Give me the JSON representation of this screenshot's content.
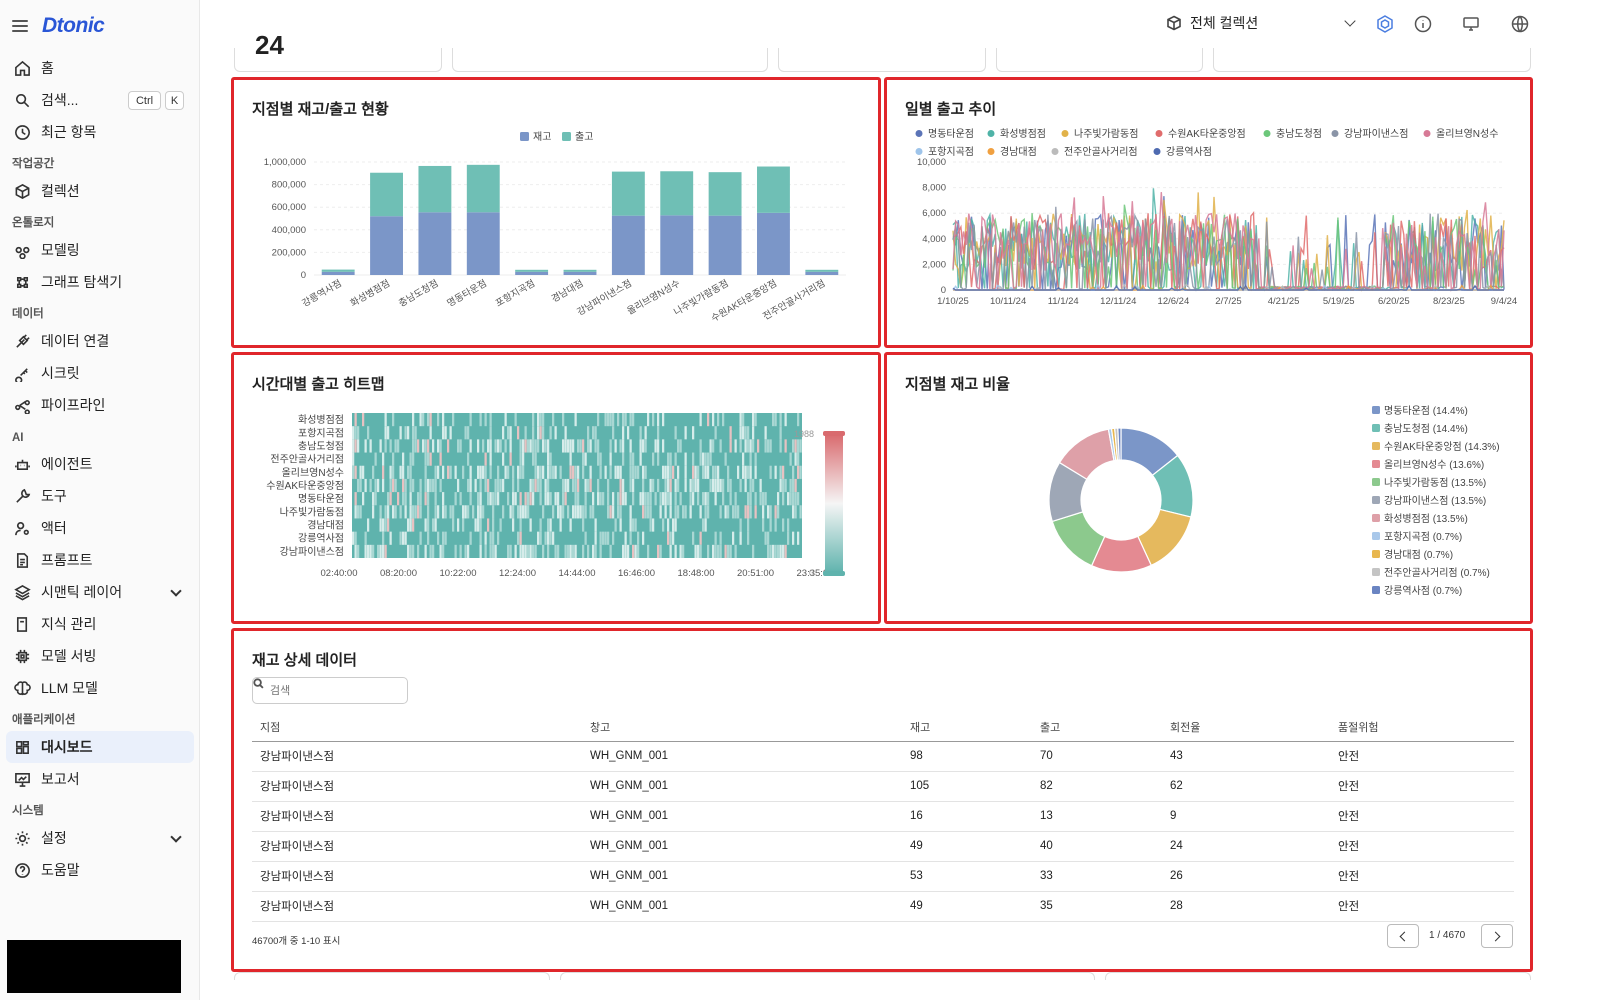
{
  "app": {
    "logo": "Dtonic"
  },
  "sidebar": {
    "items": [
      {
        "label": "홈",
        "icon": "home-icon"
      },
      {
        "label": "검색...",
        "icon": "search-icon",
        "kbd": [
          "Ctrl",
          "K"
        ]
      },
      {
        "label": "최근 항목",
        "icon": "clock-icon"
      }
    ],
    "sections": [
      {
        "title": "작업공간",
        "items": [
          {
            "label": "컬렉션",
            "icon": "cube-icon"
          }
        ]
      },
      {
        "title": "온톨로지",
        "items": [
          {
            "label": "모델링",
            "icon": "modeling-icon"
          },
          {
            "label": "그래프 탐색기",
            "icon": "graph-icon"
          }
        ]
      },
      {
        "title": "데이터",
        "items": [
          {
            "label": "데이터 연결",
            "icon": "plug-icon"
          },
          {
            "label": "시크릿",
            "icon": "key-icon"
          },
          {
            "label": "파이프라인",
            "icon": "pipeline-icon"
          }
        ]
      },
      {
        "title": "AI",
        "items": [
          {
            "label": "에이전트",
            "icon": "robot-icon"
          },
          {
            "label": "도구",
            "icon": "wrench-icon"
          },
          {
            "label": "액터",
            "icon": "user-gear-icon"
          },
          {
            "label": "프롬프트",
            "icon": "document-icon"
          },
          {
            "label": "시맨틱 레이어",
            "icon": "layers-icon"
          },
          {
            "label": "지식 관리",
            "icon": "book-icon"
          },
          {
            "label": "모델 서빙",
            "icon": "chip-icon"
          },
          {
            "label": "LLM 모델",
            "icon": "brain-icon"
          }
        ]
      },
      {
        "title": "애플리케이션",
        "items": [
          {
            "label": "대시보드",
            "icon": "dashboard-icon",
            "active": true
          },
          {
            "label": "보고서",
            "icon": "report-icon"
          }
        ]
      },
      {
        "title": "시스템",
        "items": [
          {
            "label": "설정",
            "icon": "gear-icon"
          },
          {
            "label": "도움말",
            "icon": "help-icon"
          }
        ]
      }
    ]
  },
  "header": {
    "collection": "전체 컬렉션"
  },
  "kpi": {
    "value": "24"
  },
  "panels": {
    "bar_title": "지점별 재고/출고 현황",
    "line_title": "일별 출고 추이",
    "heat_title": "시간대별 출고 히트맵",
    "pie_title": "지점별 재고 비율",
    "table_title": "재고 상세 데이터"
  },
  "colors": {
    "blue": "#7b96c8",
    "teal": "#6fbfb5",
    "accent": "#e0262b"
  },
  "chart_data": [
    {
      "type": "bar",
      "stacked": true,
      "categories": [
        "강릉역사점",
        "화성병점점",
        "충남도청점",
        "명동타운점",
        "포항지곡점",
        "경남대점",
        "강남파이낸스점",
        "올리브영N성수",
        "나주빛가람동점",
        "수원AK타운중앙점",
        "전주안골사거리점"
      ],
      "series": [
        {
          "name": "재고",
          "color": "#7b96c8",
          "values": [
            28000,
            520000,
            555000,
            555000,
            28000,
            28000,
            525000,
            528000,
            525000,
            550000,
            28000
          ]
        },
        {
          "name": "출고",
          "color": "#6fbfb5",
          "values": [
            20000,
            385000,
            410000,
            420000,
            18000,
            18000,
            390000,
            390000,
            385000,
            410000,
            18000
          ]
        }
      ],
      "ylim": [
        0,
        1000000
      ],
      "yticks": [
        "0",
        "200,000",
        "400,000",
        "600,000",
        "800,000",
        "1,000,000"
      ],
      "legend": "top-center"
    },
    {
      "type": "line",
      "series": [
        {
          "name": "명동타운점",
          "color": "#5b74b7"
        },
        {
          "name": "화성병점점",
          "color": "#4fb3a7"
        },
        {
          "name": "나주빛가람동점",
          "color": "#e1b24a"
        },
        {
          "name": "수원AK타운중앙점",
          "color": "#e06c6c"
        },
        {
          "name": "충남도청점",
          "color": "#6cc77a"
        },
        {
          "name": "강남파이낸스점",
          "color": "#8a94a7"
        },
        {
          "name": "올리브영N성수",
          "color": "#d77a96"
        },
        {
          "name": "포항지곡점",
          "color": "#9ec4ea"
        },
        {
          "name": "경남대점",
          "color": "#f0a040"
        },
        {
          "name": "전주안골사거리점",
          "color": "#bbbbbb"
        },
        {
          "name": "강릉역사점",
          "color": "#4e6ab0"
        }
      ],
      "x_ticks": [
        "1/10/25",
        "10/11/24",
        "11/1/24",
        "12/11/24",
        "12/6/24",
        "2/7/25",
        "4/21/25",
        "5/19/25",
        "6/20/25",
        "8/23/25",
        "9/4/24"
      ],
      "yticks": [
        "0",
        "2,000",
        "4,000",
        "6,000",
        "8,000",
        "10,000"
      ],
      "ylim": [
        0,
        10000
      ],
      "legend": "top"
    },
    {
      "type": "heatmap",
      "rows": [
        "화성병점점",
        "포항지곡점",
        "충남도청점",
        "전주안골사거리점",
        "올리브영N성수",
        "수원AK타운중앙점",
        "명동타운점",
        "나주빛가람동점",
        "경남대점",
        "강릉역사점",
        "강남파이낸스점"
      ],
      "x_ticks": [
        "02:40:00",
        "08:20:00",
        "10:22:00",
        "12:24:00",
        "14:44:00",
        "16:46:00",
        "18:48:00",
        "20:51:00",
        "23:35:00"
      ],
      "scale": {
        "min": "0",
        "max": "1988"
      }
    },
    {
      "type": "pie",
      "slices": [
        {
          "label": "명동타운점 (14.4%)",
          "value": 14.4,
          "color": "#7b96c8"
        },
        {
          "label": "충남도청점 (14.4%)",
          "value": 14.4,
          "color": "#6fbfb5"
        },
        {
          "label": "수원AK타운중앙점 (14.3%)",
          "value": 14.3,
          "color": "#e5b95e"
        },
        {
          "label": "올리브영N성수 (13.6%)",
          "value": 13.6,
          "color": "#e48a92"
        },
        {
          "label": "나주빛가람동점 (13.5%)",
          "value": 13.5,
          "color": "#8cc98d"
        },
        {
          "label": "강남파이낸스점 (13.5%)",
          "value": 13.5,
          "color": "#9ea7b6"
        },
        {
          "label": "화성병점점 (13.5%)",
          "value": 13.5,
          "color": "#dea0a8"
        },
        {
          "label": "포항지곡점 (0.7%)",
          "value": 0.7,
          "color": "#a9c8ea"
        },
        {
          "label": "경남대점 (0.7%)",
          "value": 0.7,
          "color": "#e8b74f"
        },
        {
          "label": "전주안골사거리점 (0.7%)",
          "value": 0.7,
          "color": "#c4c4c4"
        },
        {
          "label": "강릉역사점 (0.7%)",
          "value": 0.7,
          "color": "#6a84c2"
        }
      ],
      "legend": "right"
    }
  ],
  "table": {
    "search_placeholder": "검색",
    "columns": [
      "지점",
      "창고",
      "재고",
      "출고",
      "회전율",
      "품절위험"
    ],
    "rows": [
      [
        "강남파이낸스점",
        "WH_GNM_001",
        "98",
        "70",
        "43",
        "안전"
      ],
      [
        "강남파이낸스점",
        "WH_GNM_001",
        "105",
        "82",
        "62",
        "안전"
      ],
      [
        "강남파이낸스점",
        "WH_GNM_001",
        "16",
        "13",
        "9",
        "안전"
      ],
      [
        "강남파이낸스점",
        "WH_GNM_001",
        "49",
        "40",
        "24",
        "안전"
      ],
      [
        "강남파이낸스점",
        "WH_GNM_001",
        "53",
        "33",
        "26",
        "안전"
      ],
      [
        "강남파이낸스점",
        "WH_GNM_001",
        "49",
        "35",
        "28",
        "안전"
      ]
    ],
    "footer": "46700개 중 1-10 표시",
    "page": "1 / 4670"
  }
}
